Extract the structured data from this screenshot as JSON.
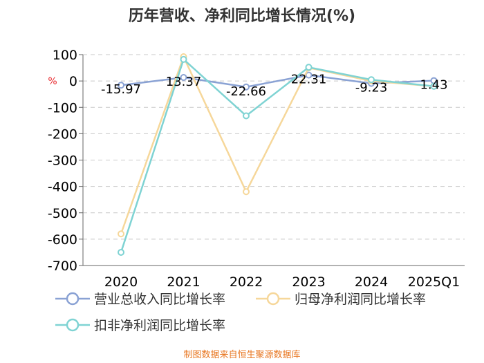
{
  "chart_data": {
    "type": "line",
    "title": "历年营收、净利同比增长情况(%)",
    "unit": "%",
    "categories": [
      "2020",
      "2021",
      "2022",
      "2023",
      "2024",
      "2025Q1"
    ],
    "y_ticks": [
      "100",
      "0",
      "-100",
      "-200",
      "-300",
      "-400",
      "-500",
      "-600",
      "-700"
    ],
    "ylim": [
      -700,
      100
    ],
    "grid": true,
    "legend_position": "bottom",
    "series": [
      {
        "name": "营业总收入同比增长率",
        "color": "#8aa2d4",
        "values": [
          -15.97,
          13.37,
          -22.66,
          22.31,
          -9.23,
          1.43
        ],
        "labels": [
          "-15.97",
          "13.37",
          "-22.66",
          "22.31",
          "-9.23",
          "1.43"
        ]
      },
      {
        "name": "归母净利润同比增长率",
        "color": "#f6d79a",
        "values": [
          -580,
          92,
          -420,
          50,
          0,
          -20
        ]
      },
      {
        "name": "扣非净利润同比增长率",
        "color": "#7fd3d3",
        "values": [
          -650,
          82,
          -132,
          52,
          5,
          -20
        ]
      }
    ]
  },
  "source": "制图数据来自恒生聚源数据库"
}
